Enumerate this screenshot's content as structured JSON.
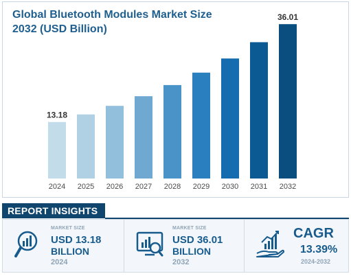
{
  "title_line1": "Global Bluetooth Modules Market Size",
  "title_line2": "2032 (USD Billion)",
  "chart_data": {
    "type": "bar",
    "title": "Global Bluetooth Modules Market Size 2032 (USD Billion)",
    "categories": [
      "2024",
      "2025",
      "2026",
      "2027",
      "2028",
      "2029",
      "2030",
      "2031",
      "2032"
    ],
    "values": [
      13.18,
      14.95,
      16.95,
      19.2,
      21.8,
      24.7,
      28.0,
      31.8,
      36.01
    ],
    "labeled_values": {
      "2024": "13.18",
      "2032": "36.01"
    },
    "ylim": [
      0,
      37
    ],
    "colors": [
      "#c2dcea",
      "#b0d0e3",
      "#92bfdb",
      "#6fa9d2",
      "#4a93c8",
      "#2a7fbf",
      "#156cae",
      "#0c5a94",
      "#0a4e80"
    ],
    "grid": false,
    "legend": "none"
  },
  "insights": {
    "header": "REPORT INSIGHTS",
    "p1": {
      "label": "MARKET SIZE",
      "value": "USD 13.18",
      "unit": "BILLION",
      "year": "2024",
      "icon": "magnifier-chart-icon"
    },
    "p2": {
      "label": "MARKET SIZE",
      "value": "USD 36.01",
      "unit": "BILLION",
      "year": "2032",
      "icon": "monitor-chart-icon"
    },
    "p3": {
      "label": "CAGR",
      "value": "13.39%",
      "range": "2024-2032",
      "icon": "growth-hand-icon"
    }
  }
}
